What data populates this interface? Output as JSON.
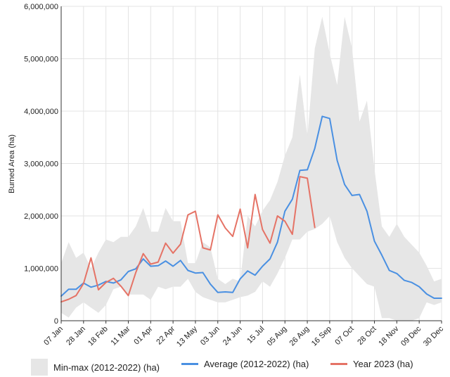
{
  "chart_data": {
    "type": "line",
    "title": "",
    "xlabel": "",
    "ylabel": "Burned Area (ha)",
    "ylim": [
      0,
      6000000
    ],
    "y_ticks": [
      "0",
      "1,000,000",
      "2,000,000",
      "3,000,000",
      "4,000,000",
      "5,000,000",
      "6,000,000"
    ],
    "x_tick_labels": [
      "07 Jan",
      "28 Jan",
      "18 Feb",
      "11 Mar",
      "01 Apr",
      "22 Apr",
      "13 May",
      "03 Jun",
      "24 Jun",
      "15 Jul",
      "05 Aug",
      "26 Aug",
      "16 Sep",
      "07 Oct",
      "28 Oct",
      "18 Nov",
      "09 Dec",
      "30 Dec"
    ],
    "x_tick_weeks": [
      0,
      3,
      6,
      9,
      12,
      15,
      18,
      21,
      24,
      27,
      30,
      33,
      36,
      39,
      42,
      45,
      48,
      51
    ],
    "weeks": 52,
    "grid": true,
    "legend_position": "bottom",
    "colors": {
      "band": "#e6e6e6",
      "average": "#4a90e2",
      "year": "#e57366",
      "grid": "#e3e3e3",
      "axis": "#333333"
    },
    "series": [
      {
        "name": "Min-max (2012-2022) (ha)",
        "kind": "band",
        "min": [
          150000,
          60000,
          250000,
          350000,
          250000,
          150000,
          300000,
          600000,
          650000,
          500000,
          500000,
          500000,
          400000,
          650000,
          600000,
          650000,
          650000,
          800000,
          550000,
          450000,
          400000,
          350000,
          350000,
          400000,
          450000,
          480000,
          550000,
          750000,
          650000,
          900000,
          1200000,
          1550000,
          1550000,
          1700000,
          1750000,
          1850000,
          2000000,
          1500000,
          1200000,
          1000000,
          850000,
          700000,
          650000,
          50000,
          50000,
          0,
          0,
          0,
          50000,
          350000,
          300000,
          350000
        ],
        "max": [
          1100000,
          1500000,
          1200000,
          1300000,
          1000000,
          1300000,
          1550000,
          1500000,
          1600000,
          1600000,
          1800000,
          2150000,
          1700000,
          1700000,
          2150000,
          1900000,
          1900000,
          1100000,
          1100000,
          1500000,
          1400000,
          800000,
          700000,
          800000,
          750000,
          2000000,
          1800000,
          2100000,
          2300000,
          2650000,
          3150000,
          3500000,
          4700000,
          3500000,
          5200000,
          5800000,
          5100000,
          4500000,
          5800000,
          5200000,
          3800000,
          4200000,
          2900000,
          1800000,
          1600000,
          1850000,
          1600000,
          1450000,
          1300000,
          1050000,
          750000,
          800000
        ]
      },
      {
        "name": "Average (2012-2022) (ha)",
        "kind": "line",
        "values": [
          470000,
          600000,
          600000,
          720000,
          640000,
          680000,
          750000,
          720000,
          780000,
          940000,
          990000,
          1180000,
          1040000,
          1050000,
          1140000,
          1040000,
          1150000,
          960000,
          910000,
          920000,
          700000,
          540000,
          550000,
          540000,
          800000,
          950000,
          870000,
          1040000,
          1180000,
          1500000,
          2090000,
          2320000,
          2870000,
          2880000,
          3290000,
          3900000,
          3860000,
          3060000,
          2600000,
          2390000,
          2410000,
          2090000,
          1520000,
          1250000,
          960000,
          900000,
          770000,
          730000,
          650000,
          510000,
          430000,
          430000
        ]
      },
      {
        "name": "Year 2023 (ha)",
        "kind": "line",
        "values": [
          360000,
          410000,
          480000,
          710000,
          1200000,
          590000,
          730000,
          810000,
          660000,
          480000,
          920000,
          1280000,
          1080000,
          1120000,
          1480000,
          1290000,
          1460000,
          2020000,
          2090000,
          1390000,
          1350000,
          2020000,
          1770000,
          1610000,
          2130000,
          1390000,
          2410000,
          1740000,
          1480000,
          2000000,
          1900000,
          1650000,
          2750000,
          2720000,
          1780000
        ]
      }
    ]
  }
}
